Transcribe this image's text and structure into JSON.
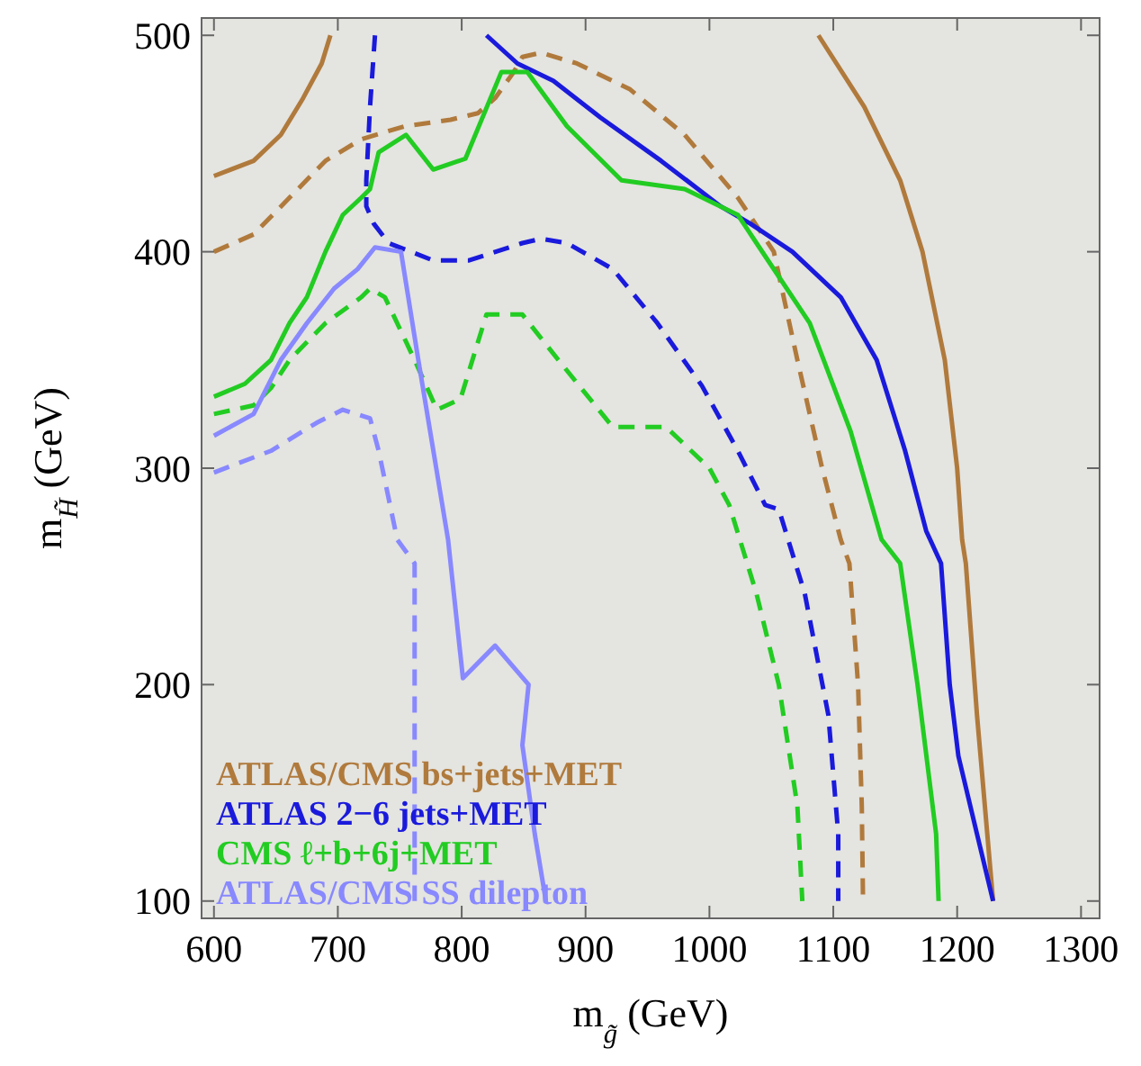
{
  "chart_data": {
    "type": "line",
    "xlabel": "m$_{g̃}$  (GeV)",
    "ylabel": "m$_{H̃}$  (GeV)",
    "xlim": [
      590,
      1315
    ],
    "ylim": [
      92,
      508
    ],
    "xticks": [
      600,
      700,
      800,
      900,
      1000,
      1100,
      1200,
      1300
    ],
    "yticks": [
      100,
      200,
      300,
      400,
      500
    ],
    "grid": false,
    "legend": "bottom left",
    "series": [
      {
        "name": "ATLAS/CMS bs+jets+MET",
        "color": "#b07a3c",
        "line_style": "solid",
        "x": [
          1088,
          1125,
          1154,
          1172,
          1190,
          1200,
          1204,
          1207,
          1216,
          1229
        ],
        "values": [
          500,
          467,
          433,
          400,
          350,
          300,
          267,
          256,
          186,
          100
        ]
      },
      {
        "color": "#b07a3c",
        "line_style": "solid",
        "x": [
          600,
          632,
          654,
          672,
          687,
          694
        ],
        "values": [
          435,
          442,
          454,
          471,
          487,
          500
        ]
      },
      {
        "color": "#b07a3c",
        "line_style": "dashed",
        "x": [
          600,
          632,
          661,
          690,
          719,
          754,
          791,
          813,
          827,
          842,
          849,
          864,
          893,
          936,
          980,
          1023,
          1052,
          1071,
          1091,
          1106,
          1113,
          1120,
          1123,
          1124
        ],
        "values": [
          400,
          408,
          425,
          442,
          452,
          458,
          461,
          464,
          471,
          483,
          490,
          492,
          487,
          475,
          454,
          425,
          400,
          350,
          300,
          267,
          256,
          200,
          144,
          100
        ]
      },
      {
        "name": "ATLAS 2−6 jets+MET",
        "color": "#1a1adc",
        "line_style": "solid",
        "x": [
          820,
          845,
          874,
          912,
          961,
          1009,
          1033,
          1067,
          1106,
          1135,
          1158,
          1175,
          1187,
          1194,
          1201,
          1216,
          1229
        ],
        "values": [
          500,
          487,
          479,
          462,
          442,
          421,
          413,
          400,
          379,
          350,
          308,
          271,
          256,
          200,
          167,
          131,
          100
        ]
      },
      {
        "color": "#1a1adc",
        "line_style": "dashed",
        "x": [
          730,
          726,
          723,
          723,
          729,
          741,
          777,
          806,
          849,
          864,
          885,
          922,
          958,
          994,
          1023,
          1045,
          1056,
          1077,
          1096,
          1104,
          1104
        ],
        "values": [
          500,
          467,
          433,
          421,
          413,
          404,
          396,
          396,
          404,
          406,
          404,
          392,
          367,
          338,
          308,
          283,
          281,
          242,
          186,
          131,
          100
        ]
      },
      {
        "name": "CMS ℓ+b+6j+MET",
        "color": "#22cc22",
        "line_style": "solid",
        "x": [
          600,
          625,
          646,
          661,
          675,
          690,
          704,
          719,
          726,
          733,
          755,
          777,
          803,
          832,
          853,
          885,
          929,
          980,
          1023,
          1038,
          1081,
          1114,
          1139,
          1154,
          1168,
          1183,
          1185
        ],
        "values": [
          333,
          339,
          350,
          367,
          379,
          400,
          417,
          425,
          429,
          446,
          454,
          438,
          443,
          483,
          483,
          458,
          433,
          429,
          417,
          404,
          367,
          317,
          267,
          256,
          200,
          131,
          100
        ]
      },
      {
        "color": "#22cc22",
        "line_style": "dashed",
        "x": [
          600,
          632,
          646,
          661,
          690,
          719,
          726,
          738,
          762,
          780,
          799,
          820,
          849,
          878,
          922,
          965,
          1000,
          1016,
          1038,
          1056,
          1071,
          1075
        ],
        "values": [
          325,
          329,
          337,
          350,
          367,
          379,
          383,
          379,
          350,
          327,
          332,
          371,
          371,
          350,
          319,
          319,
          300,
          283,
          242,
          200,
          144,
          100
        ]
      },
      {
        "name": "ATLAS/CMS SS dilepton",
        "color": "#8888ff",
        "line_style": "solid",
        "x": [
          600,
          632,
          654,
          675,
          697,
          716,
          730,
          751,
          765,
          789,
          801,
          827,
          854,
          849,
          859,
          868
        ],
        "values": [
          315,
          325,
          350,
          367,
          383,
          392,
          402,
          400,
          350,
          267,
          203,
          218,
          200,
          172,
          131,
          100
        ]
      },
      {
        "color": "#8888ff",
        "line_style": "dashed",
        "x": [
          600,
          646,
          683,
          704,
          726,
          733,
          748,
          762,
          762,
          762
        ],
        "values": [
          298,
          308,
          321,
          327,
          323,
          308,
          267,
          256,
          183,
          100
        ]
      }
    ]
  }
}
